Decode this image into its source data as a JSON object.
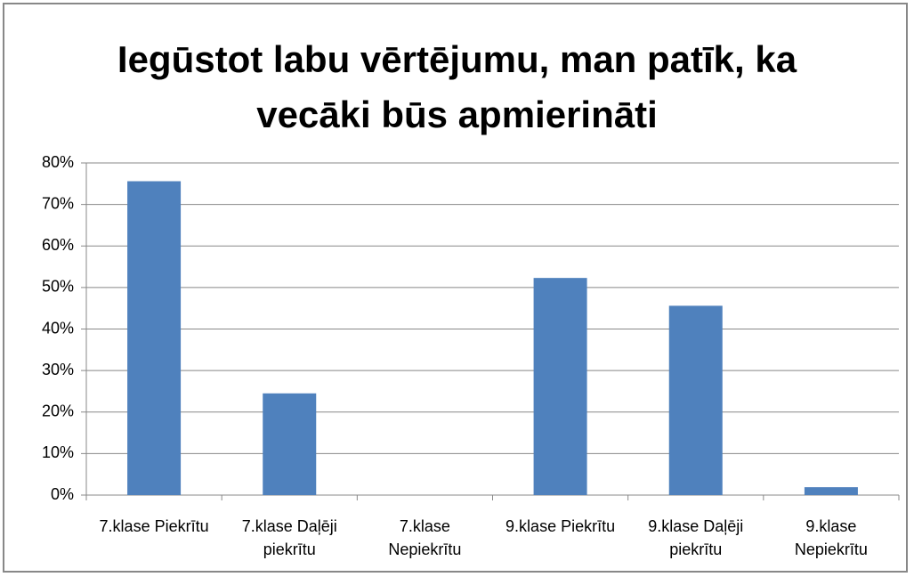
{
  "chart_data": {
    "type": "bar",
    "title": "Iegūstot labu vērtējumu, man patīk, ka vecāki būs apmierināti",
    "categories": [
      "7.klase Piekrītu",
      "7.klase Daļēji piekrītu",
      "7.klase Nepiekrītu",
      "9.klase Piekrītu",
      "9.klase Daļēji piekrītu",
      "9.klase Nepiekrītu"
    ],
    "values": [
      75.6,
      24.5,
      0,
      52.3,
      45.6,
      1.9
    ],
    "color": "#4f81bd",
    "ylim": [
      0,
      80
    ],
    "yticks": [
      {
        "value": 0,
        "label": "0%"
      },
      {
        "value": 10,
        "label": "10%"
      },
      {
        "value": 20,
        "label": "20%"
      },
      {
        "value": 30,
        "label": "30%"
      },
      {
        "value": 40,
        "label": "40%"
      },
      {
        "value": 50,
        "label": "50%"
      },
      {
        "value": 60,
        "label": "60%"
      },
      {
        "value": 70,
        "label": "70%"
      },
      {
        "value": 80,
        "label": "80%"
      }
    ],
    "grid": true
  }
}
